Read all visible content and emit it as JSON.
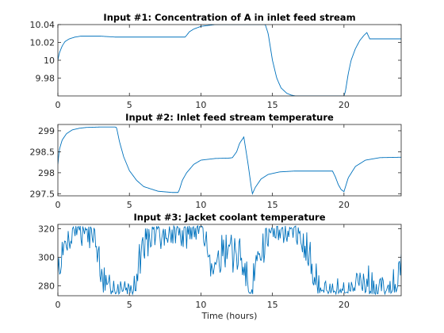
{
  "figure": {
    "xlabel": "Time (hours)"
  },
  "chart_data": [
    {
      "type": "line",
      "title": "Input #1: Concentration of A in inlet feed stream",
      "xlabel": "",
      "ylabel": "",
      "xlim": [
        0,
        24
      ],
      "ylim": [
        9.96,
        10.04
      ],
      "xticks": [
        0,
        5,
        10,
        15,
        20
      ],
      "yticks": [
        9.98,
        10,
        10.02,
        10.04
      ],
      "ytick_labels": [
        "9.98",
        "10",
        "10.02",
        "10.04"
      ],
      "line_color": "#0072bd",
      "x": [
        0,
        0.1,
        0.3,
        0.5,
        0.8,
        1.2,
        1.6,
        2,
        2.5,
        3,
        4,
        5,
        6,
        7,
        8,
        8.9,
        9.0,
        9.2,
        9.5,
        10,
        10.5,
        11,
        12,
        13,
        14,
        14.5,
        14.7,
        15.0,
        15.3,
        15.6,
        16,
        16.3,
        16.6,
        17,
        18,
        19,
        20,
        20.1,
        20.3,
        20.5,
        20.8,
        21.1,
        21.4,
        21.6,
        21.8,
        22,
        23,
        24
      ],
      "y": [
        10.0,
        10.008,
        10.016,
        10.021,
        10.024,
        10.026,
        10.027,
        10.027,
        10.027,
        10.027,
        10.026,
        10.026,
        10.026,
        10.026,
        10.026,
        10.026,
        10.028,
        10.032,
        10.035,
        10.038,
        10.039,
        10.04,
        10.04,
        10.04,
        10.04,
        10.04,
        10.03,
        10.0,
        9.98,
        9.969,
        9.963,
        9.961,
        9.96,
        9.96,
        9.96,
        9.96,
        9.96,
        9.965,
        9.985,
        10.0,
        10.013,
        10.022,
        10.028,
        10.031,
        10.024,
        10.024,
        10.024,
        10.024
      ]
    },
    {
      "type": "line",
      "title": "Input #2: Inlet feed stream temperature",
      "xlabel": "",
      "ylabel": "",
      "xlim": [
        0,
        24
      ],
      "ylim": [
        297.45,
        299.15
      ],
      "xticks": [
        0,
        5,
        10,
        15,
        20
      ],
      "yticks": [
        297.5,
        298,
        298.5,
        299
      ],
      "ytick_labels": [
        "297.5",
        "298",
        "298.5",
        "299"
      ],
      "line_color": "#0072bd",
      "x": [
        0,
        0.1,
        0.3,
        0.6,
        1.0,
        1.5,
        2,
        3,
        4,
        4.1,
        4.3,
        4.6,
        5,
        5.5,
        6,
        7,
        8,
        8.4,
        8.5,
        8.7,
        9.0,
        9.5,
        10,
        11,
        12,
        12.2,
        12.5,
        12.7,
        13.0,
        13.3,
        13.5,
        13.6,
        13.8,
        14.2,
        14.7,
        15.5,
        16.5,
        17.5,
        18.5,
        19.2,
        19.4,
        19.6,
        19.8,
        20.0,
        20.3,
        20.8,
        21.5,
        22.5,
        24
      ],
      "y": [
        298.2,
        298.55,
        298.78,
        298.93,
        299.02,
        299.06,
        299.08,
        299.09,
        299.09,
        299.08,
        298.75,
        298.38,
        298.05,
        297.82,
        297.67,
        297.56,
        297.53,
        297.53,
        297.6,
        297.82,
        298.0,
        298.2,
        298.3,
        298.34,
        298.35,
        298.36,
        298.5,
        298.7,
        298.85,
        298.2,
        297.7,
        297.5,
        297.65,
        297.85,
        297.96,
        298.02,
        298.04,
        298.04,
        298.04,
        298.04,
        297.9,
        297.72,
        297.6,
        297.55,
        297.88,
        298.15,
        298.3,
        298.36,
        298.37
      ]
    },
    {
      "type": "line",
      "title": "Input #3: Jacket coolant temperature",
      "xlabel": "Time (hours)",
      "ylabel": "",
      "xlim": [
        0,
        24
      ],
      "ylim": [
        273,
        323
      ],
      "xticks": [
        0,
        5,
        10,
        15,
        20
      ],
      "yticks": [
        280,
        300,
        320
      ],
      "ytick_labels": [
        "280",
        "300",
        "320"
      ],
      "line_color": "#0072bd",
      "noise_seed": 7,
      "x": [
        0,
        0.3,
        0.6,
        1.0,
        1.5,
        2.0,
        2.5,
        2.8,
        3.0,
        3.3,
        3.6,
        4.0,
        4.5,
        5.0,
        5.4,
        5.6,
        5.8,
        6.2,
        7.0,
        8.0,
        9.0,
        10.0,
        10.3,
        10.6,
        10.9,
        11.2,
        11.6,
        12.0,
        12.4,
        12.8,
        13.1,
        13.3,
        13.5,
        13.8,
        14.2,
        14.6,
        15.0,
        15.5,
        16.0,
        16.5,
        17.0,
        17.6,
        17.9,
        18.2,
        18.6,
        19.0,
        19.5,
        20.0,
        20.5,
        21.0,
        21.5,
        22.0,
        22.5,
        23.0,
        23.4,
        23.7,
        24.0
      ],
      "y": [
        291,
        300,
        310,
        318,
        320,
        320,
        316,
        305,
        285,
        276,
        275,
        276,
        277,
        277,
        279,
        290,
        305,
        312,
        316,
        319,
        320,
        320,
        315,
        300,
        292,
        302,
        306,
        303,
        302,
        298,
        290,
        278,
        275,
        290,
        305,
        315,
        319,
        320,
        320,
        318,
        314,
        306,
        290,
        278,
        275,
        274,
        274,
        275,
        274,
        276,
        277,
        281,
        278,
        276,
        277,
        282,
        300
      ]
    }
  ]
}
